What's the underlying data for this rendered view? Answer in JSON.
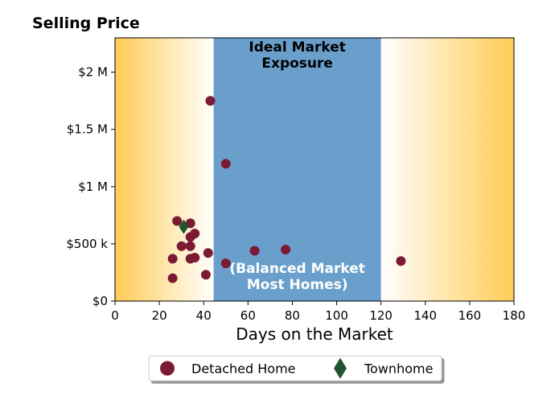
{
  "chart_data": {
    "type": "scatter",
    "title": "Selling Price",
    "xlabel": "Days on the Market",
    "ylabel": "",
    "xlim": [
      0,
      180
    ],
    "ylim": [
      0,
      2300000
    ],
    "x_ticks": [
      0,
      20,
      40,
      60,
      80,
      100,
      120,
      140,
      160,
      180
    ],
    "x_tick_labels": [
      "0",
      "20",
      "40",
      "60",
      "80",
      "100",
      "120",
      "140",
      "160",
      "180"
    ],
    "y_ticks": [
      0,
      500000,
      1000000,
      1500000,
      2000000
    ],
    "y_tick_labels": [
      "$0",
      "$500 k",
      "$1 M",
      "$1.5 M",
      "$2 M"
    ],
    "grid": false,
    "legend_position": "bottom-center",
    "bands": [
      {
        "from": 44.5,
        "to": 120,
        "color": "#6a9fcc",
        "label_top": [
          "Ideal Market",
          "Exposure"
        ],
        "label_bottom": [
          "(Balanced Market",
          "Most Homes)"
        ]
      }
    ],
    "background_gradient": {
      "edge_color": "#ffcc55",
      "center_color": "#ffffff"
    },
    "series": [
      {
        "name": "Detached Home",
        "marker": "circle",
        "color": "#7a1a35",
        "points": [
          [
            43,
            1750000
          ],
          [
            50,
            1200000
          ],
          [
            28,
            700000
          ],
          [
            34,
            680000
          ],
          [
            36,
            590000
          ],
          [
            34,
            560000
          ],
          [
            30,
            480000
          ],
          [
            34,
            480000
          ],
          [
            63,
            440000
          ],
          [
            77,
            450000
          ],
          [
            42,
            420000
          ],
          [
            36,
            380000
          ],
          [
            34,
            370000
          ],
          [
            26,
            370000
          ],
          [
            50,
            330000
          ],
          [
            41,
            230000
          ],
          [
            26,
            200000
          ],
          [
            129,
            350000
          ]
        ]
      },
      {
        "name": "Townhome",
        "marker": "diamond",
        "color": "#1f5530",
        "points": [
          [
            31,
            650000
          ]
        ]
      }
    ]
  }
}
